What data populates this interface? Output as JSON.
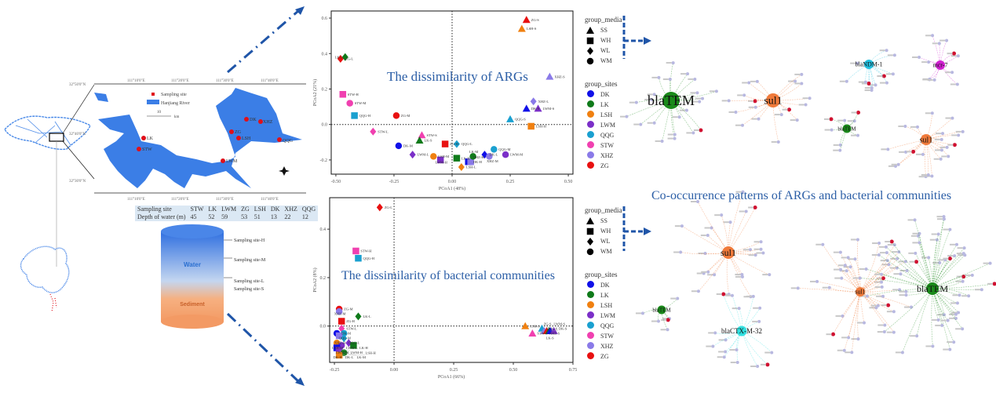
{
  "map": {
    "legend_site": "Sampling site",
    "legend_river": "Hanjiang River",
    "scale_value": "10",
    "scale_unit": "km",
    "lon_top": [
      "111°10'0\"E",
      "111°20'0\"E",
      "111°30'0\"E",
      "111°40'0\"E"
    ],
    "lon_bottom": [
      "111°10'0\"E",
      "111°20'0\"E",
      "111°30'0\"E",
      "111°40'0\"E"
    ],
    "lat_left": [
      "32°50'0\"N",
      "32°40'0\"N",
      "32°30'0\"N"
    ],
    "sites": [
      "DK",
      "XHZ",
      "ZG",
      "LSH",
      "QQG",
      "LK",
      "STW",
      "LWM"
    ],
    "water_color": "#3b7ee6",
    "site_color": "#e0101a"
  },
  "depth_table": {
    "header": [
      "Sampling site",
      "STW",
      "LK",
      "LWM",
      "ZG",
      "LSH",
      "DK",
      "XHZ",
      "QQG"
    ],
    "row": [
      "Depth of water (m)",
      "45",
      "52",
      "59",
      "53",
      "51",
      "13",
      "22",
      "12"
    ]
  },
  "cylinder": {
    "water": "Water",
    "sediment": "Sediment",
    "sites": [
      "Sampling site-H",
      "Sampling site-M",
      "Sampling site-L",
      "Sampling site-S"
    ]
  },
  "colors": {
    "DK": "#1010e8",
    "LK": "#0f7a1a",
    "LSH": "#f08010",
    "LWM": "#7b2fc8",
    "QQG": "#1aa0d0",
    "STW": "#f040b0",
    "XHZ": "#8a7ae8",
    "ZG": "#e81010",
    "accent": "#2b5ea6"
  },
  "legend": {
    "media_title": "group_media",
    "media": [
      {
        "label": "SS",
        "shape": "triangle"
      },
      {
        "label": "WH",
        "shape": "square"
      },
      {
        "label": "WL",
        "shape": "diamond"
      },
      {
        "label": "WM",
        "shape": "circle"
      }
    ],
    "sites_title": "group_sites",
    "sites": [
      "DK",
      "LK",
      "LSH",
      "LWM",
      "QQG",
      "STW",
      "XHZ",
      "ZG"
    ]
  },
  "chart_data": [
    {
      "type": "scatter",
      "title": "The dissimilarity of ARGs",
      "xlabel": "PCoA1 (48%)",
      "ylabel": "PCoA2 (21%)",
      "xlim": [
        -0.52,
        0.52
      ],
      "ylim": [
        -0.28,
        0.64
      ],
      "xticks": [
        "-0.50",
        "-0.25",
        "0.00",
        "0.25",
        "0.50"
      ],
      "xtick_values": [
        -0.5,
        -0.25,
        0,
        0.25,
        0.5
      ],
      "yticks": [
        "-0.2",
        "0.0",
        "0.2",
        "0.4",
        "0.6"
      ],
      "ytick_values": [
        -0.2,
        0,
        0.2,
        0.4,
        0.6
      ],
      "points": [
        {
          "label": "ZG-S",
          "site": "ZG",
          "media": "SS",
          "x": 0.32,
          "y": 0.59
        },
        {
          "label": "LSH-S",
          "site": "LSH",
          "media": "SS",
          "x": 0.3,
          "y": 0.54
        },
        {
          "label": "ZG-L",
          "site": "ZG",
          "media": "WL",
          "x": -0.48,
          "y": 0.37
        },
        {
          "label": "LK-L",
          "site": "LK",
          "media": "WL",
          "x": -0.46,
          "y": 0.38
        },
        {
          "label": "XHZ-S",
          "site": "XHZ",
          "media": "SS",
          "x": 0.42,
          "y": 0.27
        },
        {
          "label": "STW-H",
          "site": "STW",
          "media": "WH",
          "x": -0.47,
          "y": 0.17
        },
        {
          "label": "STW-M",
          "site": "STW",
          "media": "WM",
          "x": -0.44,
          "y": 0.12
        },
        {
          "label": "QQG-H",
          "site": "QQG",
          "media": "WH",
          "x": -0.42,
          "y": 0.05
        },
        {
          "label": "ZG-M",
          "site": "ZG",
          "media": "WM",
          "x": -0.24,
          "y": 0.05
        },
        {
          "label": "XHZ-L",
          "site": "XHZ",
          "media": "WL",
          "x": 0.35,
          "y": 0.13
        },
        {
          "label": "DK-S",
          "site": "DK",
          "media": "SS",
          "x": 0.32,
          "y": 0.09
        },
        {
          "label": "LWM-S",
          "site": "LWM",
          "media": "SS",
          "x": 0.37,
          "y": 0.09
        },
        {
          "label": "QQG-S",
          "site": "QQG",
          "media": "SS",
          "x": 0.25,
          "y": 0.03
        },
        {
          "label": "LSH-H",
          "site": "LSH",
          "media": "WH",
          "x": 0.34,
          "y": -0.01
        },
        {
          "label": "STW-L",
          "site": "STW",
          "media": "WL",
          "x": -0.34,
          "y": -0.04
        },
        {
          "label": "STW-S",
          "site": "STW",
          "media": "SS",
          "x": -0.13,
          "y": -0.06
        },
        {
          "label": "LK-S",
          "site": "LK",
          "media": "SS",
          "x": -0.14,
          "y": -0.09
        },
        {
          "label": "ZG-H",
          "site": "ZG",
          "media": "WH",
          "x": -0.03,
          "y": -0.11
        },
        {
          "label": "QQG-L",
          "site": "QQG",
          "media": "WL",
          "x": 0.02,
          "y": -0.11
        },
        {
          "label": "DK-M",
          "site": "DK",
          "media": "WM",
          "x": -0.23,
          "y": -0.12
        },
        {
          "label": "LWM-L",
          "site": "LWM",
          "media": "WL",
          "x": -0.17,
          "y": -0.17
        },
        {
          "label": "LSH-M",
          "site": "LSH",
          "media": "WM",
          "x": -0.08,
          "y": -0.18
        },
        {
          "label": "LWM-H",
          "site": "LWM",
          "media": "WH",
          "x": -0.05,
          "y": -0.2
        },
        {
          "label": "LK-H",
          "site": "LK",
          "media": "WH",
          "x": 0.02,
          "y": -0.19
        },
        {
          "label": "LSH-L",
          "site": "LSH",
          "media": "WL",
          "x": 0.04,
          "y": -0.24
        },
        {
          "label": "DK-H",
          "site": "DK",
          "media": "WH",
          "x": 0.07,
          "y": -0.21
        },
        {
          "label": "XHZ-H",
          "site": "XHZ",
          "media": "WH",
          "x": 0.08,
          "y": -0.21
        },
        {
          "label": "LK-M",
          "site": "LK",
          "media": "WM",
          "x": 0.09,
          "y": -0.18
        },
        {
          "label": "DK-L",
          "site": "DK",
          "media": "WL",
          "x": 0.14,
          "y": -0.17
        },
        {
          "label": "XHZ-M",
          "site": "XHZ",
          "media": "WM",
          "x": 0.16,
          "y": -0.18
        },
        {
          "label": "QQG-M",
          "site": "QQG",
          "media": "WM",
          "x": 0.18,
          "y": -0.14
        },
        {
          "label": "LWM-M",
          "site": "LWM",
          "media": "WM",
          "x": 0.23,
          "y": -0.17
        }
      ]
    },
    {
      "type": "scatter",
      "title": "The dissimilarity of bacterial communities",
      "xlabel": "PCoA1 (66%)",
      "ylabel": "PCoA2 (8%)",
      "xlim": [
        -0.27,
        0.75
      ],
      "ylim": [
        -0.15,
        0.53
      ],
      "xticks": [
        "-0.25",
        "0.00",
        "0.25",
        "0.50",
        "0.75"
      ],
      "xtick_values": [
        -0.25,
        0,
        0.25,
        0.5,
        0.75
      ],
      "yticks": [
        "0.0",
        "0.2",
        "0.4"
      ],
      "ytick_values": [
        0,
        0.2,
        0.4
      ],
      "points": [
        {
          "label": "ZG-L",
          "site": "ZG",
          "media": "WL",
          "x": -0.06,
          "y": 0.49
        },
        {
          "label": "STW-H",
          "site": "STW",
          "media": "WH",
          "x": -0.16,
          "y": 0.31
        },
        {
          "label": "QQG-H",
          "site": "QQG",
          "media": "WH",
          "x": -0.15,
          "y": 0.28
        },
        {
          "label": "ZG-M",
          "site": "ZG",
          "media": "WM",
          "x": -0.23,
          "y": 0.07
        },
        {
          "label": "XHZ-M",
          "site": "XHZ",
          "media": "WM",
          "x": -0.23,
          "y": 0.06
        },
        {
          "label": "LK-L",
          "site": "LK",
          "media": "WL",
          "x": -0.15,
          "y": 0.04
        },
        {
          "label": "ZG-H",
          "site": "ZG",
          "media": "WH",
          "x": -0.22,
          "y": 0.02
        },
        {
          "label": "STW-L",
          "site": "STW",
          "media": "WL",
          "x": -0.22,
          "y": -0.01
        },
        {
          "label": "DK-M",
          "site": "DK",
          "media": "WM",
          "x": -0.24,
          "y": -0.03
        },
        {
          "label": "QQG-M",
          "site": "QQG",
          "media": "WM",
          "x": -0.21,
          "y": -0.03
        },
        {
          "label": "XHZ-H",
          "site": "XHZ",
          "media": "WH",
          "x": -0.23,
          "y": -0.04
        },
        {
          "label": "QQG-L",
          "site": "QQG",
          "media": "WL",
          "x": -0.21,
          "y": -0.05
        },
        {
          "label": "LSH-M",
          "site": "LSH",
          "media": "WM",
          "x": -0.24,
          "y": -0.07
        },
        {
          "label": "LWM-L",
          "site": "LWM",
          "media": "WL",
          "x": -0.19,
          "y": -0.07
        },
        {
          "label": "LWM-M",
          "site": "LWM",
          "media": "WM",
          "x": -0.22,
          "y": -0.08
        },
        {
          "label": "LK-H",
          "site": "LK",
          "media": "WH",
          "x": -0.17,
          "y": -0.08
        },
        {
          "label": "DK-H",
          "site": "DK",
          "media": "WH",
          "x": -0.24,
          "y": -0.09
        },
        {
          "label": "DK-L",
          "site": "DK",
          "media": "WL",
          "x": -0.23,
          "y": -0.1
        },
        {
          "label": "LWM-H",
          "site": "LWM",
          "media": "WH",
          "x": -0.23,
          "y": -0.1
        },
        {
          "label": "LK-M",
          "site": "LK",
          "media": "WM",
          "x": -0.21,
          "y": -0.11
        },
        {
          "label": "LSH-H",
          "site": "LSH",
          "media": "WH",
          "x": -0.23,
          "y": -0.12
        },
        {
          "label": "LSH-S",
          "site": "LSH",
          "media": "SS",
          "x": 0.55,
          "y": 0.0
        },
        {
          "label": "STW-S",
          "site": "STW",
          "media": "SS",
          "x": 0.58,
          "y": -0.03
        },
        {
          "label": "QQG-S",
          "site": "QQG",
          "media": "SS",
          "x": 0.62,
          "y": -0.01
        },
        {
          "label": "XHZ-S",
          "site": "XHZ",
          "media": "SS",
          "x": 0.63,
          "y": -0.02
        },
        {
          "label": "ZG-S",
          "site": "ZG",
          "media": "SS",
          "x": 0.64,
          "y": -0.02
        },
        {
          "label": "LK-S",
          "site": "LK",
          "media": "SS",
          "x": 0.65,
          "y": -0.02
        },
        {
          "label": "DK-S",
          "site": "DK",
          "media": "SS",
          "x": 0.655,
          "y": -0.02
        },
        {
          "label": "LWM-S",
          "site": "LWM",
          "media": "SS",
          "x": 0.67,
          "y": -0.02
        }
      ]
    }
  ],
  "network": {
    "title": "Co-occurrence patterns of ARGs and bacterial communities",
    "panels": [
      {
        "hubs": [
          {
            "label": "blaTEM",
            "color": "#1a8a1a"
          },
          {
            "label": "sul1",
            "color": "#f07a3a"
          }
        ]
      },
      {
        "hubs": [
          {
            "label": "blaNDM-1",
            "color": "#20c0e0"
          },
          {
            "label": "mcr-7",
            "color": "#d020d0"
          },
          {
            "label": "blaTEM",
            "color": "#1a8a1a"
          },
          {
            "label": "sul1",
            "color": "#f07a3a"
          }
        ]
      },
      {
        "hubs": [
          {
            "label": "sul1",
            "color": "#f07a3a"
          },
          {
            "label": "blaTEM",
            "color": "#1a8a1a"
          },
          {
            "label": "blaCTX-M-32",
            "color": "#30e0e0"
          }
        ]
      },
      {
        "hubs": [
          {
            "label": "sul1",
            "color": "#f07a3a"
          },
          {
            "label": "blaTEM",
            "color": "#1a8a1a"
          }
        ]
      }
    ],
    "otu_color": "#b8b8e0",
    "shared_otu_color": "#d01030"
  }
}
